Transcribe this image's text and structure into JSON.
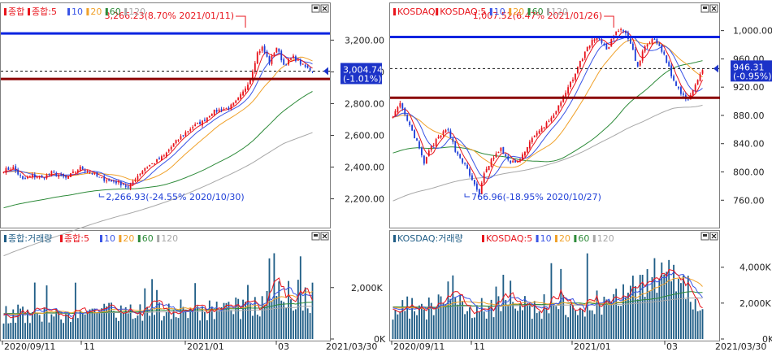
{
  "chart_data": [
    {
      "type": "candlestick",
      "legend": [
        "종합",
        "종합:5",
        "10",
        "20",
        "60",
        "120"
      ],
      "colors": {
        "up": "#e8141c",
        "down": "#1f3fd8",
        "ma5": "#e8141c",
        "ma10": "#3a55e6",
        "ma20": "#f0a12a",
        "ma60": "#2e8b3a",
        "ma120": "#a8a8a8",
        "hline": "#0a24e0",
        "sline": "#8b0000"
      },
      "y_ticks": [
        2200,
        2400,
        2600,
        2800,
        3000,
        3200
      ],
      "y_tick_labels": [
        "2,200.00",
        "2,400.00",
        "2,600.00",
        "2,800.00",
        "3,000.00",
        "3,200.00"
      ],
      "ylim": [
        2080,
        3340
      ],
      "n_bars": 130,
      "anchors": [
        [
          0,
          2380
        ],
        [
          4,
          2395
        ],
        [
          8,
          2320
        ],
        [
          12,
          2345
        ],
        [
          16,
          2330
        ],
        [
          20,
          2365
        ],
        [
          26,
          2330
        ],
        [
          32,
          2395
        ],
        [
          36,
          2370
        ],
        [
          40,
          2330
        ],
        [
          46,
          2310
        ],
        [
          50,
          2290
        ],
        [
          52,
          2267
        ],
        [
          55,
          2330
        ],
        [
          59,
          2395
        ],
        [
          63,
          2430
        ],
        [
          67,
          2470
        ],
        [
          71,
          2545
        ],
        [
          75,
          2605
        ],
        [
          79,
          2655
        ],
        [
          83,
          2685
        ],
        [
          87,
          2745
        ],
        [
          91,
          2765
        ],
        [
          94,
          2772
        ],
        [
          97,
          2810
        ],
        [
          100,
          2870
        ],
        [
          103,
          2960
        ],
        [
          106,
          3120
        ],
        [
          108,
          3152
        ],
        [
          111,
          3060
        ],
        [
          114,
          3155
        ],
        [
          117,
          3045
        ],
        [
          121,
          3092
        ],
        [
          125,
          3040
        ],
        [
          129,
          3005
        ]
      ],
      "resistance": 3242,
      "support": 2955,
      "last_price": 3004.74,
      "price_label": "3,004.74",
      "change_label": "(-1.01%)",
      "high_label": "3,266.23(8.70% 2021/01/11)",
      "low_label": "2,266.93(-24.55% 2020/10/30)",
      "high_bar": 101,
      "low_bar": 40
    },
    {
      "type": "candlestick",
      "legend": [
        "KOSDAQ",
        "KOSDAQ:5",
        "10",
        "20",
        "60",
        "120"
      ],
      "colors": {
        "up": "#e8141c",
        "down": "#1f3fd8",
        "ma5": "#e8141c",
        "ma10": "#3a55e6",
        "ma20": "#f0a12a",
        "ma60": "#2e8b3a",
        "ma120": "#a8a8a8",
        "hline": "#0a24e0",
        "sline": "#8b0000"
      },
      "y_ticks": [
        760,
        800,
        840,
        880,
        920,
        960,
        1000
      ],
      "y_tick_labels": [
        "760.00",
        "800.00",
        "840.00",
        "880.00",
        "920.00",
        "960.00",
        "1,000.00"
      ],
      "ylim": [
        735,
        1018
      ],
      "n_bars": 130,
      "anchors": [
        [
          0,
          880
        ],
        [
          3,
          895
        ],
        [
          6,
          872
        ],
        [
          10,
          842
        ],
        [
          13,
          812
        ],
        [
          16,
          836
        ],
        [
          20,
          852
        ],
        [
          23,
          862
        ],
        [
          26,
          830
        ],
        [
          30,
          810
        ],
        [
          33,
          788
        ],
        [
          36,
          770
        ],
        [
          38,
          796
        ],
        [
          41,
          817
        ],
        [
          45,
          832
        ],
        [
          49,
          812
        ],
        [
          53,
          818
        ],
        [
          57,
          842
        ],
        [
          61,
          858
        ],
        [
          65,
          872
        ],
        [
          69,
          892
        ],
        [
          73,
          918
        ],
        [
          77,
          948
        ],
        [
          81,
          976
        ],
        [
          85,
          993
        ],
        [
          89,
          973
        ],
        [
          93,
          998
        ],
        [
          96,
          1000
        ],
        [
          99,
          982
        ],
        [
          102,
          948
        ],
        [
          105,
          978
        ],
        [
          109,
          988
        ],
        [
          113,
          966
        ],
        [
          117,
          928
        ],
        [
          120,
          912
        ],
        [
          123,
          902
        ],
        [
          126,
          925
        ],
        [
          129,
          946
        ]
      ],
      "resistance": 991,
      "support": 905,
      "last_price": 946.31,
      "price_label": "946.31",
      "change_label": "(-0.95%)",
      "high_label": "1,007.52(6.47% 2021/01/26)",
      "low_label": "766.96(-18.95% 2020/10/27)",
      "high_bar": 92,
      "low_bar": 30
    },
    {
      "type": "bar",
      "legend": [
        "종합:거래량",
        "종합:5",
        "10",
        "20",
        "60",
        "120"
      ],
      "y_tick_labels": [
        "2,000K",
        "0K"
      ],
      "y_ticks": [
        2000,
        0
      ],
      "ylim": [
        0,
        3700
      ]
    },
    {
      "type": "bar",
      "legend": [
        "KOSDAQ:거래량",
        "KOSDAQ:5",
        "10",
        "20",
        "60",
        "120"
      ],
      "y_tick_labels": [
        "4,000K",
        "2,000K",
        "0K"
      ],
      "y_ticks": [
        4000,
        2000,
        0
      ],
      "ylim": [
        0,
        5300
      ]
    }
  ],
  "x_axis": {
    "left": [
      "2020/09/11",
      "11",
      "2021/01",
      "03"
    ],
    "left_end": "2021/03/30",
    "right": [
      "2020/09/11",
      "11",
      "2021/01",
      "03"
    ],
    "right_end": "2021/03/30"
  }
}
